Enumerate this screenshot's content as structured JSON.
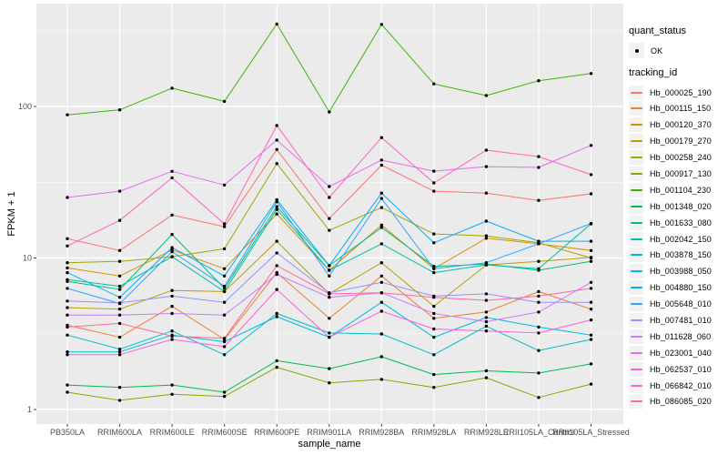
{
  "figure": {
    "background": "#FFFFFF",
    "panel_background": "#EBEBEB",
    "gridline_color": "#FFFFFF",
    "tick_color": "#333333",
    "tick_label_color": "#4D4D4D",
    "point_color": "#000000",
    "legend_key_background": "#F2F2F2"
  },
  "legend": {
    "quant_status_title": "quant_status",
    "quant_status_items": [
      {
        "label": "OK",
        "marker": "black-point"
      }
    ],
    "tracking_id_title": "tracking_id"
  },
  "chart_data": {
    "type": "line",
    "title": "",
    "xlabel": "sample_name",
    "ylabel": "FPKM + 1",
    "y_scale": "log10",
    "y_ticks": [
      1,
      10,
      100
    ],
    "y_tick_labels": [
      "1",
      "10",
      "100"
    ],
    "y_minor_breaks": [
      3.162,
      31.62,
      316.2
    ],
    "ylim": [
      1,
      478
    ],
    "grid": true,
    "legend_position": "right",
    "marker": "point",
    "categories": [
      "PB350LA",
      "RRIM600LA",
      "RRIM600LE",
      "RRIM600SE",
      "RRIM600PE",
      "RRIM901LA",
      "RRIM928BA",
      "RRIM928LA",
      "RRIM928LE",
      "RRII105LA_Control",
      "RRII105LA_Stressed"
    ],
    "series": [
      {
        "name": "Hb_000025_190",
        "color": "#F8766D",
        "values": [
          13.4,
          11.2,
          19.2,
          16.1,
          52,
          18.2,
          41,
          27.6,
          26.8,
          24,
          26.5
        ]
      },
      {
        "name": "Hb_000115_150",
        "color": "#EA8331",
        "values": [
          3.6,
          3.0,
          4.8,
          2.9,
          8.0,
          4.0,
          7.6,
          4.0,
          4.4,
          6.0,
          4.6
        ]
      },
      {
        "name": "Hb_000120_370",
        "color": "#D89000",
        "values": [
          8.6,
          7.6,
          11.3,
          8.5,
          19.5,
          8.3,
          16.5,
          8.5,
          13.5,
          12.4,
          11.2
        ]
      },
      {
        "name": "Hb_000179_270",
        "color": "#C09B00",
        "values": [
          4.7,
          4.6,
          6.1,
          6.0,
          12.9,
          5.8,
          9.3,
          4.8,
          9.0,
          9.5,
          10.1
        ]
      },
      {
        "name": "Hb_000258_240",
        "color": "#A3A500",
        "values": [
          9.3,
          9.5,
          10.2,
          11.5,
          42,
          15.2,
          21.5,
          14.4,
          14.0,
          12.6,
          10.0
        ]
      },
      {
        "name": "Hb_000917_130",
        "color": "#7CAE00",
        "values": [
          1.3,
          1.15,
          1.26,
          1.22,
          1.9,
          1.5,
          1.58,
          1.4,
          1.62,
          1.2,
          1.47
        ]
      },
      {
        "name": "Hb_001104_230",
        "color": "#39B600",
        "values": [
          88,
          95,
          132,
          108,
          350,
          92,
          348,
          141,
          118,
          148,
          165
        ]
      },
      {
        "name": "Hb_001348_020",
        "color": "#00BB4E",
        "values": [
          1.45,
          1.4,
          1.45,
          1.3,
          2.1,
          1.86,
          2.23,
          1.7,
          1.8,
          1.74,
          2.0
        ]
      },
      {
        "name": "Hb_001633_080",
        "color": "#00BF7D",
        "values": [
          7.0,
          6.2,
          14.3,
          6.3,
          21.8,
          8.9,
          15.9,
          8.8,
          9.1,
          8.3,
          9.5
        ]
      },
      {
        "name": "Hb_002042_150",
        "color": "#00C1A3",
        "values": [
          7.2,
          6.5,
          10.2,
          6.0,
          20.9,
          8.3,
          12.4,
          8.0,
          9.0,
          8.5,
          16.8
        ]
      },
      {
        "name": "Hb_003878_150",
        "color": "#00BFC4",
        "values": [
          3.1,
          2.5,
          3.3,
          2.3,
          4.3,
          3.2,
          3.15,
          2.3,
          3.55,
          2.45,
          2.9
        ]
      },
      {
        "name": "Hb_003988_050",
        "color": "#00BAE0",
        "values": [
          2.4,
          2.4,
          3.1,
          2.8,
          4.1,
          3.0,
          5.1,
          3.0,
          4.05,
          3.5,
          3.1
        ]
      },
      {
        "name": "Hb_004880_150",
        "color": "#00B0F6",
        "values": [
          8.0,
          5.5,
          11.7,
          7.6,
          24.2,
          8.9,
          26.8,
          12.6,
          17.5,
          12.9,
          12.9
        ]
      },
      {
        "name": "Hb_005648_010",
        "color": "#35A2FF",
        "values": [
          6.3,
          5.0,
          11.0,
          6.5,
          23.5,
          7.6,
          24.7,
          8.5,
          9.3,
          12.4,
          16.9
        ]
      },
      {
        "name": "Hb_007481_010",
        "color": "#9590FF",
        "values": [
          5.2,
          5.05,
          5.6,
          5.1,
          10.8,
          5.9,
          6.9,
          5.6,
          5.8,
          5.1,
          5.1
        ]
      },
      {
        "name": "Hb_011628_060",
        "color": "#C77CFF",
        "values": [
          4.2,
          4.2,
          4.3,
          4.2,
          7.8,
          5.5,
          5.9,
          4.3,
          3.8,
          4.4,
          6.9
        ]
      },
      {
        "name": "Hb_023001_040",
        "color": "#E76BF3",
        "values": [
          25.1,
          27.6,
          37.3,
          30.3,
          60,
          29.6,
          44.3,
          37.4,
          40.1,
          39.6,
          55.3
        ]
      },
      {
        "name": "Hb_062537_010",
        "color": "#FA62DB",
        "values": [
          2.3,
          2.3,
          2.9,
          2.6,
          6.2,
          3.0,
          4.45,
          3.4,
          3.3,
          3.2,
          3.9
        ]
      },
      {
        "name": "Hb_066842_010",
        "color": "#FF62BC",
        "values": [
          12.0,
          17.7,
          33.8,
          16.8,
          74.9,
          25.1,
          62.3,
          31.3,
          51.5,
          46.7,
          35.5
        ]
      },
      {
        "name": "Hb_086085_020",
        "color": "#FF6A98",
        "values": [
          3.5,
          3.7,
          3.05,
          2.95,
          8.9,
          5.8,
          5.9,
          5.5,
          5.25,
          5.6,
          6.3
        ]
      }
    ]
  }
}
